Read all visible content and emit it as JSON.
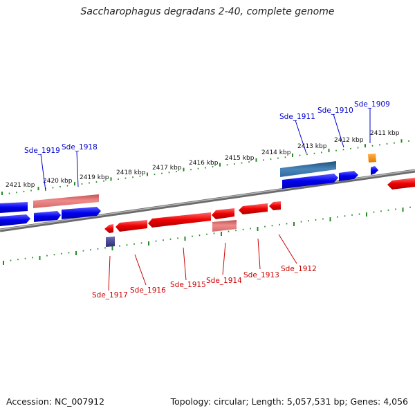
{
  "title": "Saccharophagus degradans 2-40, complete genome",
  "footer": {
    "accession": "Accession: NC_007912",
    "summary": "Topology: circular; Length: 5,057,531 bp; Genes: 4,056"
  },
  "scale_labels": [
    "2421 kbp",
    "2420 kbp",
    "2419 kbp",
    "2418 kbp",
    "2417 kbp",
    "2416 kbp",
    "2415 kbp",
    "2414 kbp",
    "2413 kbp",
    "2412 kbp",
    "2411 kbp"
  ],
  "genes_top": [
    "Sde_1919",
    "Sde_1918",
    "Sde_1911",
    "Sde_1910",
    "Sde_1909"
  ],
  "genes_bottom": [
    "Sde_1917",
    "Sde_1916",
    "Sde_1915",
    "Sde_1914",
    "Sde_1913",
    "Sde_1912"
  ],
  "colors": {
    "forward": "#0000ee",
    "reverse": "#ee0000",
    "label_forward": "#0000cc",
    "label_reverse": "#cc0000",
    "tick": "#228b22",
    "backbone": "#7a7a7a"
  }
}
